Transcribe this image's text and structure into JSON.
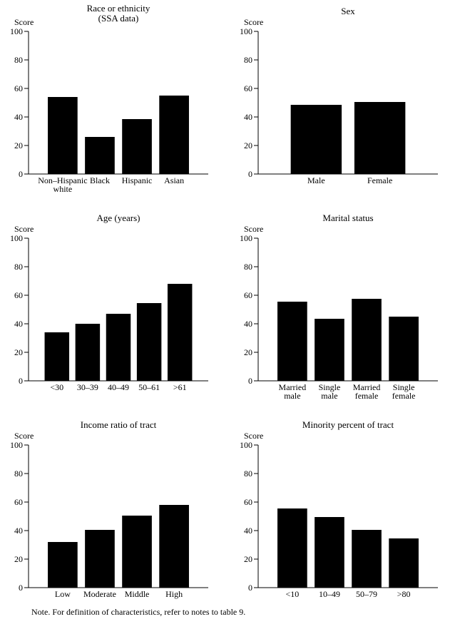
{
  "page": {
    "background_color": "#ffffff",
    "ink_color": "#000000",
    "note": "Note. For definition of characteristics, refer to notes to table 9."
  },
  "chart_data": [
    {
      "id": "race-ethnicity",
      "type": "bar",
      "title": "Race or ethnicity",
      "subtitle": "(SSA data)",
      "ylabel": "Score",
      "ylim": [
        0,
        100
      ],
      "yticks": [
        0,
        20,
        40,
        60,
        80,
        100
      ],
      "grid": false,
      "bar_color": "#000000",
      "categories": [
        "Non–Hispanic\nwhite",
        "Black",
        "Hispanic",
        "Asian"
      ],
      "values": [
        54,
        26,
        38.5,
        55
      ]
    },
    {
      "id": "sex",
      "type": "bar",
      "title": "Sex",
      "subtitle": "",
      "ylabel": "Score",
      "ylim": [
        0,
        100
      ],
      "yticks": [
        0,
        20,
        40,
        60,
        80,
        100
      ],
      "grid": false,
      "bar_color": "#000000",
      "categories": [
        "Male",
        "Female"
      ],
      "values": [
        48.5,
        50.5
      ]
    },
    {
      "id": "age-years",
      "type": "bar",
      "title": "Age (years)",
      "subtitle": "",
      "ylabel": "Score",
      "ylim": [
        0,
        100
      ],
      "yticks": [
        0,
        20,
        40,
        60,
        80,
        100
      ],
      "grid": false,
      "bar_color": "#000000",
      "categories": [
        "<30",
        "30–39",
        "40–49",
        "50–61",
        ">61"
      ],
      "values": [
        34,
        40,
        47,
        54.5,
        68
      ]
    },
    {
      "id": "marital-status",
      "type": "bar",
      "title": "Marital status",
      "subtitle": "",
      "ylabel": "Score",
      "ylim": [
        0,
        100
      ],
      "yticks": [
        0,
        20,
        40,
        60,
        80,
        100
      ],
      "grid": false,
      "bar_color": "#000000",
      "categories": [
        "Married\nmale",
        "Single\nmale",
        "Married\nfemale",
        "Single\nfemale"
      ],
      "values": [
        55.5,
        43.5,
        57.5,
        45
      ]
    },
    {
      "id": "income-ratio-of-tract",
      "type": "bar",
      "title": "Income ratio of tract",
      "subtitle": "",
      "ylabel": "Score",
      "ylim": [
        0,
        100
      ],
      "yticks": [
        0,
        20,
        40,
        60,
        80,
        100
      ],
      "grid": false,
      "bar_color": "#000000",
      "categories": [
        "Low",
        "Moderate",
        "Middle",
        "High"
      ],
      "values": [
        32,
        40.5,
        50.5,
        58
      ]
    },
    {
      "id": "minority-percent-of-tract",
      "type": "bar",
      "title": "Minority percent of tract",
      "subtitle": "",
      "ylabel": "Score",
      "ylim": [
        0,
        100
      ],
      "yticks": [
        0,
        20,
        40,
        60,
        80,
        100
      ],
      "grid": false,
      "bar_color": "#000000",
      "categories": [
        "<10",
        "10–49",
        "50–79",
        ">80"
      ],
      "values": [
        55.5,
        49.5,
        40.5,
        34.5
      ]
    }
  ]
}
